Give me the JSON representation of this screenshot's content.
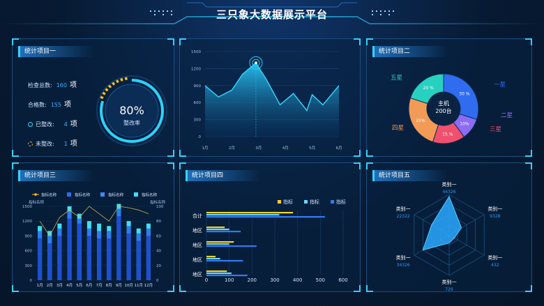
{
  "header": {
    "title": "三只象大数据展示平台"
  },
  "panel1": {
    "title": "统计项目一",
    "stats": [
      {
        "label": "检查总数:",
        "value": "160",
        "unit": "项"
      },
      {
        "label": "合格数:",
        "value": "155",
        "unit": "项"
      },
      {
        "label": "已整改:",
        "value": "4",
        "unit": "项"
      },
      {
        "label": "未整改:",
        "value": "1",
        "unit": "项"
      }
    ],
    "gauge": {
      "value": "80%",
      "label": "整改率",
      "fraction": 0.8
    }
  },
  "panel2": {
    "chart_data": {
      "type": "area",
      "x": [
        "1月",
        "2月",
        "3月",
        "4月",
        "5月",
        "6月"
      ],
      "yticks": [
        "0",
        "300",
        "600",
        "900",
        "1200",
        "1500"
      ],
      "ylim": [
        0,
        1500
      ],
      "points": [
        {
          "x": 0,
          "y": 900
        },
        {
          "x": 0.5,
          "y": 700
        },
        {
          "x": 1,
          "y": 820
        },
        {
          "x": 1.4,
          "y": 1100
        },
        {
          "x": 1.9,
          "y": 1300
        },
        {
          "x": 2.3,
          "y": 1000
        },
        {
          "x": 2.8,
          "y": 560
        },
        {
          "x": 3.3,
          "y": 760
        },
        {
          "x": 3.8,
          "y": 460
        },
        {
          "x": 4.0,
          "y": 740
        },
        {
          "x": 4.4,
          "y": 560
        },
        {
          "x": 5.0,
          "y": 900
        }
      ],
      "highlight_x": 1.9
    }
  },
  "panel3": {
    "title": "统计项目二",
    "center": {
      "line1": "主机",
      "line2": "200台"
    },
    "chart_data": {
      "type": "pie",
      "slices": [
        {
          "name": "一星",
          "value": 30,
          "label": "30 %",
          "color": "#2f6cf0"
        },
        {
          "name": "二星",
          "value": 10,
          "label": "10%",
          "color": "#8b6cf2"
        },
        {
          "name": "三星",
          "value": 15,
          "label": "15 %",
          "color": "#f0506e"
        },
        {
          "name": "四星",
          "value": 25,
          "label": "25%",
          "color": "#f39a56"
        },
        {
          "name": "五星",
          "value": 20,
          "label": "20 %",
          "color": "#28d0c0"
        }
      ]
    }
  },
  "panel4": {
    "title": "统计项目三",
    "legend": [
      "指标名称",
      "指标名称",
      "指标名称",
      "指标名称"
    ],
    "axis_name_left": "指标名称",
    "axis_name_right": "指标名称",
    "chart_data": {
      "type": "bar",
      "categories": [
        "1月",
        "2月",
        "3月",
        "4月",
        "5月",
        "6月",
        "7月",
        "8月",
        "9月",
        "10月",
        "11月",
        "12月"
      ],
      "yticks_left": [
        "0",
        "300",
        "600",
        "900",
        "1200",
        "1500"
      ],
      "yticks_right": [
        "0",
        "20",
        "40",
        "60",
        "80",
        "100"
      ],
      "ylim": [
        0,
        1500
      ],
      "series": [
        {
          "values": [
            1100,
            1000,
            1150,
            1500,
            1350,
            1200,
            1150,
            1100,
            1550,
            1200,
            1050,
            1150
          ]
        },
        {
          "values": [
            1000,
            900,
            1050,
            1400,
            1250,
            1050,
            1000,
            1000,
            1450,
            1100,
            950,
            1050
          ]
        },
        {
          "values": [
            850,
            750,
            900,
            1250,
            1150,
            900,
            850,
            850,
            1300,
            950,
            800,
            900
          ]
        }
      ],
      "line": [
        80,
        60,
        85,
        95,
        85,
        100,
        90,
        80,
        100,
        98,
        95,
        90
      ],
      "line_ylim": [
        0,
        100
      ]
    }
  },
  "panel5": {
    "title": "统计项目四",
    "legend": [
      "指标",
      "指标",
      "指标"
    ],
    "chart_data": {
      "type": "bar",
      "orientation": "horizontal",
      "categories": [
        "合计",
        "地区",
        "地区",
        "地区",
        "地区"
      ],
      "xticks": [
        "0",
        "100",
        "200",
        "300",
        "400",
        "500",
        "600"
      ],
      "xlim": [
        0,
        600
      ],
      "series": [
        {
          "color": "#ffd21f",
          "values": [
            380,
            80,
            120,
            40,
            90
          ]
        },
        {
          "color": "#6fd6ff",
          "values": [
            320,
            100,
            100,
            60,
            110
          ]
        },
        {
          "color": "#2f7cf0",
          "values": [
            520,
            150,
            220,
            160,
            180
          ]
        }
      ]
    }
  },
  "panel6": {
    "title": "统计项目五",
    "chart_data": {
      "type": "radar",
      "axes": [
        {
          "name": "类别一",
          "value": "44326",
          "r": 0.95
        },
        {
          "name": "类别一",
          "value": "9328",
          "r": 0.35
        },
        {
          "name": "类别一",
          "value": "432",
          "r": 0.15
        },
        {
          "name": "类别一",
          "value": "729",
          "r": 0.2
        },
        {
          "name": "类别一",
          "value": "34326",
          "r": 0.75
        },
        {
          "name": "类别一",
          "value": "22322",
          "r": 0.5
        }
      ]
    }
  }
}
